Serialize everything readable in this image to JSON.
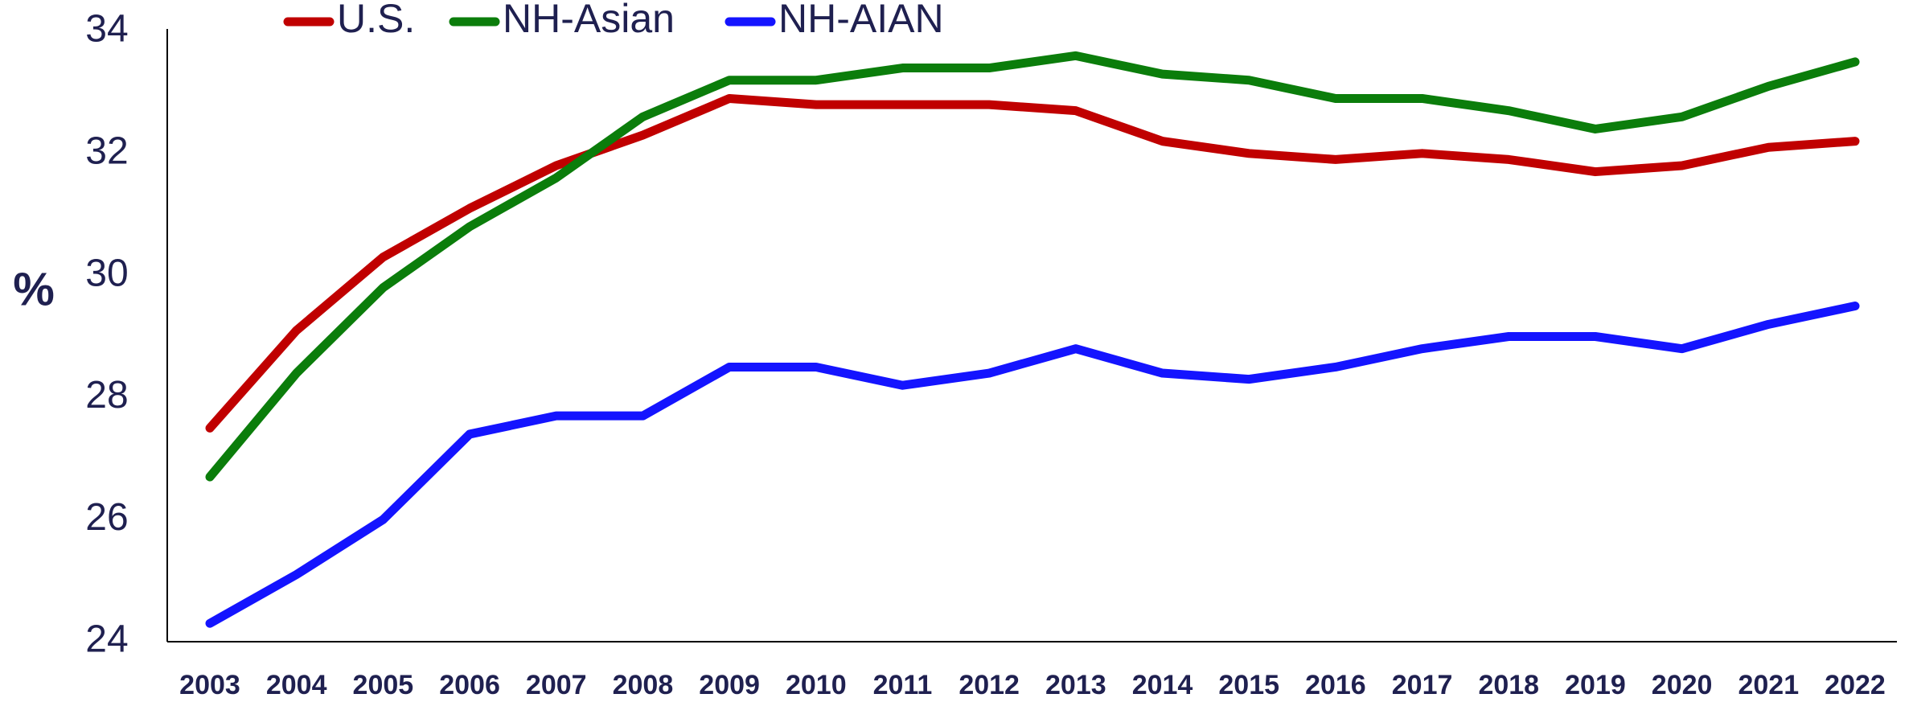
{
  "chart_data": {
    "type": "line",
    "ylabel": "%",
    "categories": [
      "2003",
      "2004",
      "2005",
      "2006",
      "2007",
      "2008",
      "2009",
      "2010",
      "2011",
      "2012",
      "2013",
      "2014",
      "2015",
      "2016",
      "2017",
      "2018",
      "2019",
      "2020",
      "2021",
      "2022"
    ],
    "series": [
      {
        "name": "U.S.",
        "color": "#c00000",
        "values": [
          27.5,
          29.1,
          30.3,
          31.1,
          31.8,
          32.3,
          32.9,
          32.8,
          32.8,
          32.8,
          32.7,
          32.2,
          32.0,
          31.9,
          32.0,
          31.9,
          31.7,
          31.8,
          32.1,
          32.2
        ]
      },
      {
        "name": "NH-Asian",
        "color": "#0b7d0b",
        "values": [
          26.7,
          28.4,
          29.8,
          30.8,
          31.6,
          32.6,
          33.2,
          33.2,
          33.4,
          33.4,
          33.6,
          33.3,
          33.2,
          32.9,
          32.9,
          32.7,
          32.4,
          32.6,
          33.1,
          33.5
        ]
      },
      {
        "name": "NH-AIAN",
        "color": "#1414ff",
        "values": [
          24.3,
          25.1,
          26.0,
          27.4,
          27.7,
          27.7,
          28.5,
          28.5,
          28.2,
          28.4,
          28.8,
          28.4,
          28.3,
          28.5,
          28.8,
          29.0,
          29.0,
          28.8,
          29.2,
          29.5
        ]
      }
    ],
    "ylim": [
      24,
      34
    ],
    "yticks": [
      24,
      26,
      28,
      30,
      32,
      34
    ],
    "grid": false,
    "legend": "top"
  }
}
